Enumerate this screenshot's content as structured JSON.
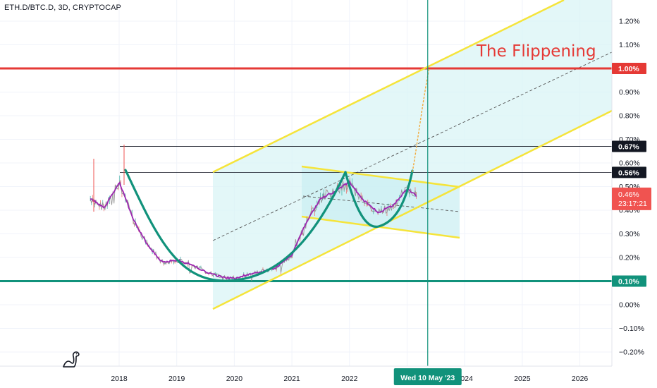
{
  "symbol": {
    "title": "ETH.D/BTC.D, 3D, CRYPTOCAP"
  },
  "annotation": {
    "text": "The Flippening",
    "color": "#e53935"
  },
  "colors": {
    "red_level": "#e53935",
    "green_level": "#11927b",
    "channel": "#f5e43a",
    "channel_fill": "#d9f4f6",
    "price": "#8e8e8e",
    "ma": "#9c27b0",
    "cup": "#11927b",
    "vertical_marker": "#11927b",
    "last_price_label": "#f05350",
    "grid": "#f0f3fa"
  },
  "price_scale": {
    "ticks": [
      "1.20%",
      "1.10%",
      "1.00%",
      "0.90%",
      "0.80%",
      "0.70%",
      "0.60%",
      "0.50%",
      "0.40%",
      "0.30%",
      "0.20%",
      "0.10%",
      "0.00%",
      "−0.10%",
      "−0.20%"
    ],
    "badges": [
      {
        "id": "red",
        "text": "1.00%",
        "bg": "#e53935",
        "fg": "#ffffff"
      },
      {
        "id": "h067",
        "text": "0.67%",
        "bg": "#131722",
        "fg": "#ffffff"
      },
      {
        "id": "h056",
        "text": "0.56%",
        "bg": "#131722",
        "fg": "#ffffff"
      },
      {
        "id": "green",
        "text": "0.10%",
        "bg": "#11927b",
        "fg": "#ffffff"
      }
    ],
    "last_price": {
      "price": "0.46%",
      "countdown": "23:17:21"
    }
  },
  "time_scale": {
    "ticks": [
      "2018",
      "2019",
      "2020",
      "2021",
      "2022",
      "2024",
      "2025",
      "2026"
    ],
    "cursor_label": "Wed 10 May '23"
  },
  "chart_data": {
    "type": "line",
    "title": "ETH.D/BTC.D, 3D, CRYPTOCAP",
    "xlabel": "",
    "ylabel": "",
    "ylim": [
      -0.25,
      1.27
    ],
    "y_unit": "%",
    "grid": true,
    "x": [
      "2017-07",
      "2017-10",
      "2018-01",
      "2018-04",
      "2018-07",
      "2018-10",
      "2019-01",
      "2019-04",
      "2019-07",
      "2019-10",
      "2020-01",
      "2020-04",
      "2020-07",
      "2020-10",
      "2021-01",
      "2021-04",
      "2021-07",
      "2021-10",
      "2022-01",
      "2022-04",
      "2022-07",
      "2022-10",
      "2023-01",
      "2023-03"
    ],
    "series": [
      {
        "values": [
          0.45,
          0.41,
          0.52,
          0.36,
          0.25,
          0.18,
          0.19,
          0.17,
          0.14,
          0.12,
          0.11,
          0.13,
          0.14,
          0.16,
          0.21,
          0.35,
          0.45,
          0.48,
          0.52,
          0.44,
          0.39,
          0.42,
          0.49,
          0.46
        ]
      }
    ],
    "horizontal_levels": [
      {
        "value": 1.0,
        "style": "thick-red"
      },
      {
        "value": 0.67,
        "style": "thin-black"
      },
      {
        "value": 0.56,
        "style": "thin-black"
      },
      {
        "value": 0.1,
        "style": "thick-green"
      }
    ],
    "vertical_marker": "2023-05-10"
  }
}
